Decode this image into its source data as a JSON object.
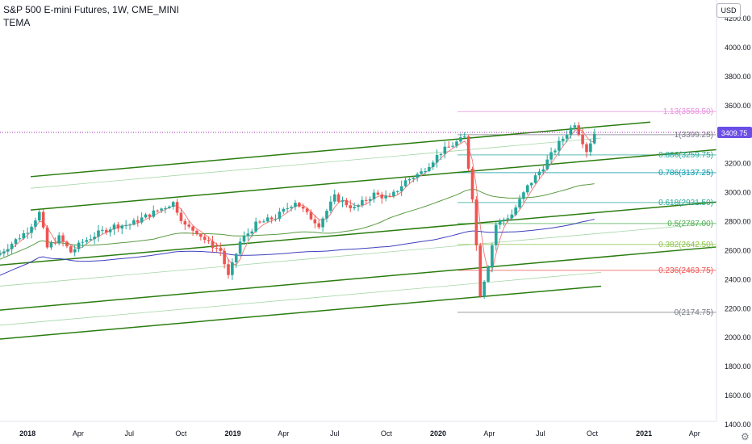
{
  "header": {
    "title": "S&P 500 E-mini Futures, 1W, CME_MINI",
    "indicator": "TEMA",
    "currency": "USD"
  },
  "price_tag": {
    "value": "3409.75",
    "color": "#2962ff"
  },
  "colors": {
    "up": "#26a69a",
    "down": "#ef5350",
    "channel": "#2a7c0f",
    "channel_light": "#a5d6a7",
    "ma_blue": "#3f3fbf",
    "ma_green": "#5b9b45",
    "tema": "#f08080"
  },
  "chart_data": {
    "type": "candlestick",
    "y_axis": {
      "range": [
        1400,
        4350
      ],
      "ticks": [
        1400,
        1600,
        1800,
        2000,
        2200,
        2400,
        2600,
        2800,
        3000,
        3200,
        3400,
        3600,
        3800,
        4000,
        4200
      ],
      "tick_labels": [
        "1400.00",
        "1600.00",
        "1800.00",
        "2000.00",
        "2200.00",
        "2400.00",
        "2600.00",
        "2800.00",
        "3000.00",
        "3200.00",
        "3400.00",
        "3600.00",
        "3800.00",
        "4000.00",
        "4200.00"
      ]
    },
    "x_axis": {
      "range": [
        "2017-11-13",
        "2021-05-10"
      ],
      "ticks": [
        "2018-01-01",
        "2018-04-01",
        "2018-07-01",
        "2018-10-01",
        "2019-01-01",
        "2019-04-01",
        "2019-07-01",
        "2019-10-01",
        "2020-01-01",
        "2020-04-01",
        "2020-07-01",
        "2020-10-01",
        "2021-01-01",
        "2021-04-01"
      ],
      "tick_labels": [
        "2018",
        "Apr",
        "Jul",
        "Oct",
        "2019",
        "Apr",
        "Jul",
        "Oct",
        "2020",
        "Apr",
        "Jul",
        "Oct",
        "2021",
        "Apr"
      ]
    },
    "weekly_closes": [
      {
        "date": "2017-11-13",
        "close": 2580
      },
      {
        "date": "2017-12-04",
        "close": 2650
      },
      {
        "date": "2018-01-01",
        "close": 2740
      },
      {
        "date": "2018-01-22",
        "close": 2860
      },
      {
        "date": "2018-02-05",
        "close": 2620
      },
      {
        "date": "2018-02-26",
        "close": 2690
      },
      {
        "date": "2018-03-19",
        "close": 2590
      },
      {
        "date": "2018-04-09",
        "close": 2660
      },
      {
        "date": "2018-05-07",
        "close": 2720
      },
      {
        "date": "2018-06-04",
        "close": 2770
      },
      {
        "date": "2018-07-02",
        "close": 2780
      },
      {
        "date": "2018-08-06",
        "close": 2850
      },
      {
        "date": "2018-09-17",
        "close": 2930
      },
      {
        "date": "2018-10-08",
        "close": 2770
      },
      {
        "date": "2018-10-29",
        "close": 2730
      },
      {
        "date": "2018-11-19",
        "close": 2650
      },
      {
        "date": "2018-12-10",
        "close": 2600
      },
      {
        "date": "2018-12-24",
        "close": 2420
      },
      {
        "date": "2019-01-14",
        "close": 2660
      },
      {
        "date": "2019-02-11",
        "close": 2780
      },
      {
        "date": "2019-03-18",
        "close": 2830
      },
      {
        "date": "2019-04-22",
        "close": 2940
      },
      {
        "date": "2019-05-13",
        "close": 2850
      },
      {
        "date": "2019-06-03",
        "close": 2780
      },
      {
        "date": "2019-07-01",
        "close": 2970
      },
      {
        "date": "2019-08-05",
        "close": 2890
      },
      {
        "date": "2019-09-09",
        "close": 2990
      },
      {
        "date": "2019-10-07",
        "close": 2960
      },
      {
        "date": "2019-11-04",
        "close": 3080
      },
      {
        "date": "2019-12-02",
        "close": 3140
      },
      {
        "date": "2020-01-06",
        "close": 3280
      },
      {
        "date": "2020-02-17",
        "close": 3380
      },
      {
        "date": "2020-03-02",
        "close": 2970
      },
      {
        "date": "2020-03-16",
        "close": 2300
      },
      {
        "date": "2020-03-30",
        "close": 2500
      },
      {
        "date": "2020-04-13",
        "close": 2780
      },
      {
        "date": "2020-05-11",
        "close": 2850
      },
      {
        "date": "2020-06-08",
        "close": 3040
      },
      {
        "date": "2020-07-06",
        "close": 3180
      },
      {
        "date": "2020-08-03",
        "close": 3340
      },
      {
        "date": "2020-08-31",
        "close": 3480
      },
      {
        "date": "2020-09-21",
        "close": 3290
      },
      {
        "date": "2020-10-05",
        "close": 3409.75
      }
    ],
    "fibonacci": [
      {
        "level": "1.13",
        "price": 3558.5,
        "label": "1.13(3558.50)",
        "color": "#e88de0"
      },
      {
        "level": "1",
        "price": 3399.25,
        "label": "1(3399.25)",
        "color": "#787b86"
      },
      {
        "level": "0.886",
        "price": 3259.75,
        "label": "0.886(3259.75)",
        "color": "#26a69a"
      },
      {
        "level": "0.786",
        "price": 3137.25,
        "label": "0.786(3137.25)",
        "color": "#0097a7"
      },
      {
        "level": "0.618",
        "price": 2931.5,
        "label": "0.618(2931.50)",
        "color": "#26a69a"
      },
      {
        "level": "0.5",
        "price": 2787.0,
        "label": "0.5(2787.00)",
        "color": "#4caf50"
      },
      {
        "level": "0.382",
        "price": 2642.5,
        "label": "0.382(2642.50)",
        "color": "#8bc34a"
      },
      {
        "level": "0.236",
        "price": 2463.75,
        "label": "0.236(2463.75)",
        "color": "#ef5350"
      },
      {
        "level": "0",
        "price": 2174.75,
        "label": "0(2174.75)",
        "color": "#787b86"
      }
    ],
    "last_price": 3409.75
  }
}
